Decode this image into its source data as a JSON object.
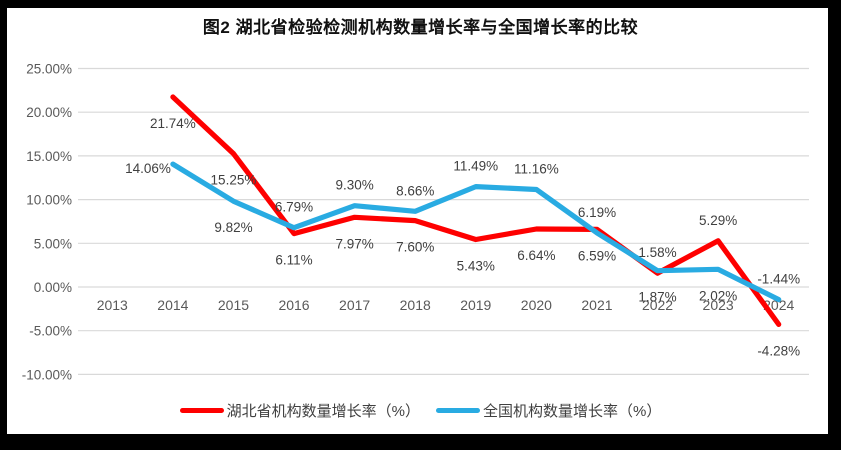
{
  "title": "图2 湖北省检验检测机构数量增长率与全国增长率的比较",
  "colors": {
    "hubei_line": "#FE0000",
    "national_line": "#29ABE2",
    "gridline": "#D9D9D9",
    "axis_text": "#595959",
    "data_label_text": "#404040",
    "frame_border": "#000000",
    "background": "#FFFFFF"
  },
  "chart_data": {
    "type": "line",
    "title": "图2 湖北省检验检测机构数量增长率与全国增长率的比较",
    "categories": [
      "2013",
      "2014",
      "2015",
      "2016",
      "2017",
      "2018",
      "2019",
      "2020",
      "2021",
      "2022",
      "2023",
      "2024"
    ],
    "series": [
      {
        "name": "湖北省机构数量增长率（%）",
        "color": "#FE0000",
        "values": [
          null,
          21.74,
          15.25,
          6.11,
          7.97,
          7.6,
          5.43,
          6.64,
          6.59,
          1.58,
          5.29,
          -4.28
        ],
        "labels": [
          null,
          "21.74%",
          "15.25%",
          "6.11%",
          "7.97%",
          "7.60%",
          "5.43%",
          "6.64%",
          "6.59%",
          "1.58%",
          "5.29%",
          "-4.28%"
        ],
        "label_positions": [
          null,
          "below",
          "below",
          "below",
          "below",
          "below",
          "below",
          "below",
          "below",
          "above",
          "above",
          "below"
        ]
      },
      {
        "name": "全国机构数量增长率（%）",
        "color": "#29ABE2",
        "values": [
          null,
          14.06,
          9.82,
          6.79,
          9.3,
          8.66,
          11.49,
          11.16,
          6.19,
          1.87,
          2.02,
          -1.44
        ],
        "labels": [
          null,
          "14.06%",
          "9.82%",
          "6.79%",
          "9.30%",
          "8.66%",
          "11.49%",
          "11.16%",
          "6.19%",
          "1.87%",
          "2.02%",
          "-1.44%"
        ],
        "label_positions": [
          null,
          "left",
          "below",
          "above",
          "above",
          "above",
          "above",
          "above",
          "above",
          "below",
          "below",
          "above"
        ]
      }
    ],
    "xlabel": "",
    "ylabel": "",
    "y_axis": {
      "min": -10,
      "max": 25,
      "step": 5,
      "tick_labels": [
        "25.00%",
        "20.00%",
        "15.00%",
        "10.00%",
        "5.00%",
        "0.00%",
        "-5.00%",
        "-10.00%"
      ]
    },
    "grid": true,
    "legend_position": "bottom"
  },
  "legend": {
    "items": [
      {
        "label": "湖北省机构数量增长率（%）",
        "color": "#FE0000"
      },
      {
        "label": "全国机构数量增长率（%）",
        "color": "#29ABE2"
      }
    ]
  }
}
